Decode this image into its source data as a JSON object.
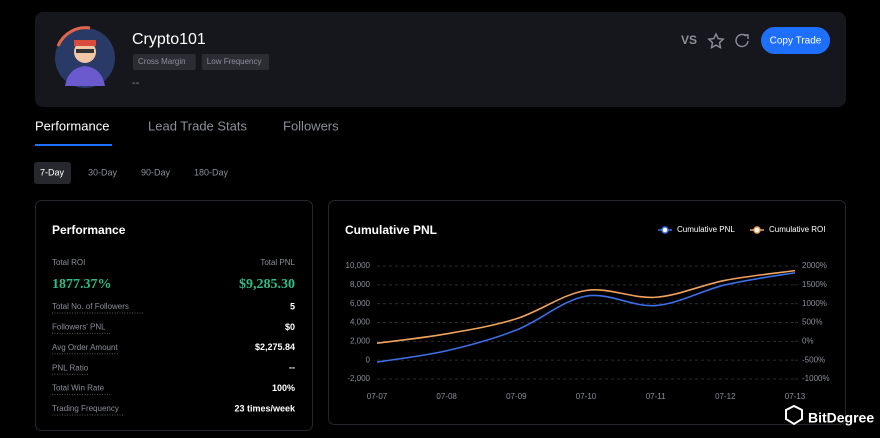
{
  "profile": {
    "name": "Crypto101",
    "tags": [
      "Cross Margin",
      "Low Frequency"
    ],
    "description": "--"
  },
  "header_actions": {
    "vs": "VS",
    "copy_button": "Copy Trade"
  },
  "tabs": [
    "Performance",
    "Lead Trade Stats",
    "Followers"
  ],
  "periods": [
    "7-Day",
    "30-Day",
    "90-Day",
    "180-Day"
  ],
  "performance": {
    "title": "Performance",
    "roi_label": "Total ROI",
    "roi": "1877.37%",
    "pnl_label": "Total PNL",
    "pnl": "$9,285.30",
    "rows": [
      [
        "Total No. of Followers",
        "5"
      ],
      [
        "Followers' PNL",
        "$0"
      ],
      [
        "Avg Order Amount",
        "$2,275.84"
      ],
      [
        "PNL Ratio",
        "--"
      ],
      [
        "Total Win Rate",
        "100%"
      ],
      [
        "Trading Frequency",
        "23 times/week"
      ]
    ]
  },
  "chart_data": {
    "type": "line",
    "title": "Cumulative PNL",
    "x": [
      "07-07",
      "07-08",
      "07-09",
      "07-10",
      "07-11",
      "07-12",
      "07-13"
    ],
    "series": [
      {
        "name": "Cumulative PNL",
        "color": "#3d6fe8",
        "values": [
          -200,
          1000,
          3200,
          6800,
          5800,
          8000,
          9285.3
        ]
      },
      {
        "name": "Cumulative ROI",
        "color": "#f0a35e",
        "axis": "y2",
        "values": [
          -50,
          200,
          600,
          1350,
          1170,
          1620,
          1877.37
        ]
      }
    ],
    "ylim": [
      -2000,
      10000
    ],
    "yticks": [
      {
        "value": -2000,
        "label": "-2,000"
      },
      0,
      {
        "value": 2000,
        "label": "2,000"
      },
      {
        "value": 4000,
        "label": "4,000"
      },
      {
        "value": 6000,
        "label": "6,000"
      },
      {
        "value": 8000,
        "label": "8,000"
      },
      {
        "value": 10000,
        "label": "10,000"
      }
    ],
    "y2lim": [
      -1000,
      2000
    ],
    "y2ticks": [
      {
        "value": -1000,
        "label": "-1000%"
      },
      {
        "value": -500,
        "label": "-500%"
      },
      {
        "value": 0,
        "label": "0%"
      },
      {
        "value": 500,
        "label": "500%"
      },
      {
        "value": 1000,
        "label": "1000%"
      },
      {
        "value": 1500,
        "label": "1500%"
      },
      {
        "value": 2000,
        "label": "2000%"
      }
    ],
    "grid": true
  },
  "watermark": "BitDegree"
}
